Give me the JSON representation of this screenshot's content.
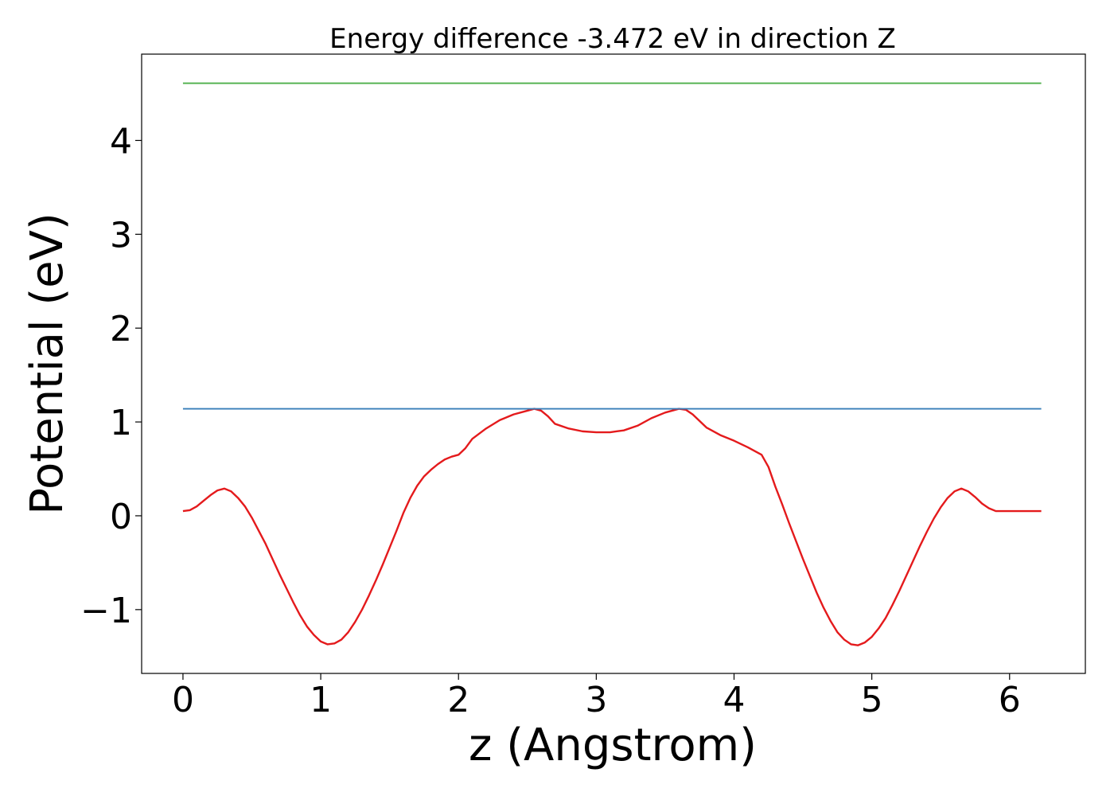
{
  "chart_data": {
    "type": "line",
    "title": "Energy difference -3.472 eV in direction Z",
    "xlabel": "z (Angstrom)",
    "ylabel": "Potential (eV)",
    "xlim": [
      -0.3,
      6.55
    ],
    "ylim": [
      -1.68,
      4.92
    ],
    "x_ticks": [
      0,
      1,
      2,
      3,
      4,
      5,
      6
    ],
    "y_ticks": [
      -1,
      0,
      1,
      2,
      3,
      4
    ],
    "y_tick_labels": [
      "−1",
      "0",
      "1",
      "2",
      "3",
      "4"
    ],
    "grid": false,
    "series": [
      {
        "color": "#e41a1c",
        "x": [
          0.0,
          0.05,
          0.1,
          0.15,
          0.2,
          0.25,
          0.3,
          0.35,
          0.4,
          0.45,
          0.5,
          0.55,
          0.6,
          0.65,
          0.7,
          0.75,
          0.8,
          0.85,
          0.9,
          0.95,
          1.0,
          1.05,
          1.1,
          1.15,
          1.2,
          1.25,
          1.3,
          1.35,
          1.4,
          1.45,
          1.5,
          1.55,
          1.6,
          1.65,
          1.7,
          1.75,
          1.8,
          1.85,
          1.9,
          1.95,
          2.0,
          2.05,
          2.1,
          2.2,
          2.3,
          2.4,
          2.5,
          2.55,
          2.6,
          2.65,
          2.7,
          2.8,
          2.9,
          3.0,
          3.1,
          3.15,
          3.2,
          3.3,
          3.4,
          3.5,
          3.6,
          3.65,
          3.7,
          3.75,
          3.8,
          3.9,
          4.0,
          4.1,
          4.2,
          4.25,
          4.3,
          4.35,
          4.4,
          4.45,
          4.5,
          4.55,
          4.6,
          4.65,
          4.7,
          4.75,
          4.8,
          4.85,
          4.9,
          4.95,
          5.0,
          5.05,
          5.1,
          5.15,
          5.2,
          5.25,
          5.3,
          5.35,
          5.4,
          5.45,
          5.5,
          5.55,
          5.6,
          5.65,
          5.7,
          5.75,
          5.8,
          5.85,
          5.9,
          5.95,
          6.0,
          6.05,
          6.1,
          6.15,
          6.2,
          6.23
        ],
        "y": [
          0.05,
          0.06,
          0.1,
          0.16,
          0.22,
          0.27,
          0.29,
          0.26,
          0.19,
          0.1,
          -0.02,
          -0.16,
          -0.3,
          -0.46,
          -0.62,
          -0.77,
          -0.92,
          -1.06,
          -1.18,
          -1.27,
          -1.34,
          -1.37,
          -1.36,
          -1.32,
          -1.24,
          -1.13,
          -1.0,
          -0.85,
          -0.69,
          -0.52,
          -0.34,
          -0.16,
          0.03,
          0.19,
          0.32,
          0.42,
          0.49,
          0.55,
          0.6,
          0.63,
          0.65,
          0.72,
          0.82,
          0.93,
          1.02,
          1.08,
          1.12,
          1.14,
          1.12,
          1.06,
          0.98,
          0.93,
          0.9,
          0.89,
          0.89,
          0.9,
          0.91,
          0.96,
          1.04,
          1.1,
          1.14,
          1.13,
          1.08,
          1.01,
          0.94,
          0.86,
          0.8,
          0.73,
          0.65,
          0.52,
          0.31,
          0.12,
          -0.08,
          -0.27,
          -0.46,
          -0.64,
          -0.82,
          -0.98,
          -1.12,
          -1.24,
          -1.32,
          -1.37,
          -1.38,
          -1.35,
          -1.29,
          -1.2,
          -1.09,
          -0.95,
          -0.8,
          -0.64,
          -0.48,
          -0.32,
          -0.17,
          -0.03,
          0.09,
          0.19,
          0.26,
          0.29,
          0.26,
          0.2,
          0.13,
          0.08,
          0.05,
          0.05,
          0.05,
          0.05,
          0.05,
          0.05,
          0.05,
          0.05
        ]
      },
      {
        "color": "#377eb8",
        "x": [
          0.0,
          6.23
        ],
        "y": [
          1.14,
          1.14
        ]
      },
      {
        "color": "#4daf4a",
        "x": [
          0.0,
          6.23
        ],
        "y": [
          4.61,
          4.61
        ]
      }
    ]
  }
}
